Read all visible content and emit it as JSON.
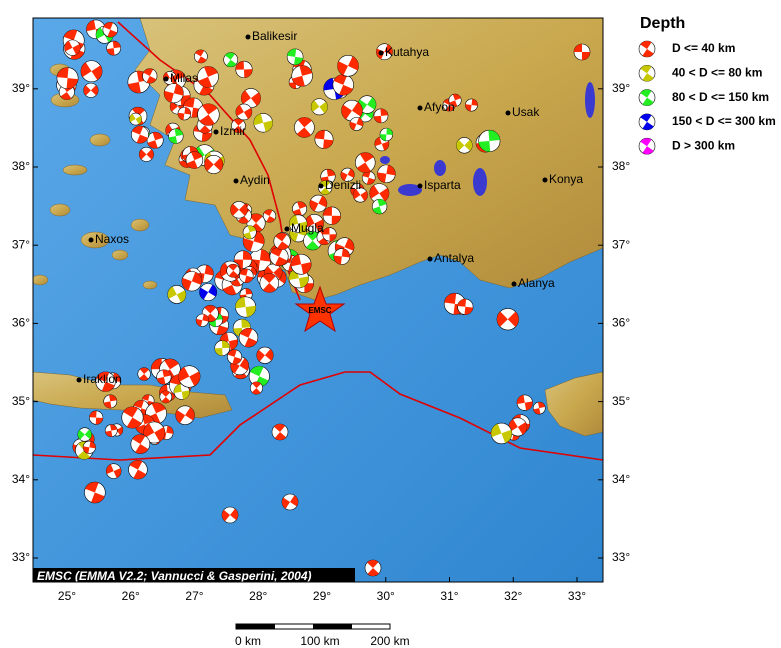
{
  "legend": {
    "title": "Depth",
    "items": [
      {
        "label": "D <= 40 km",
        "color": "#ff2a00"
      },
      {
        "label": "40 < D <= 80 km",
        "color": "#c8c800"
      },
      {
        "label": "80 < D <= 150 km",
        "color": "#22ee22"
      },
      {
        "label": "150 < D <= 300 km",
        "color": "#0000ee"
      },
      {
        "label": "D > 300 km",
        "color": "#ff00ff"
      }
    ]
  },
  "longitude_labels": [
    "25°",
    "26°",
    "27°",
    "28°",
    "29°",
    "30°",
    "31°",
    "32°",
    "33°"
  ],
  "latitude_labels": [
    "33°",
    "34°",
    "35°",
    "36°",
    "37°",
    "38°",
    "39°"
  ],
  "cities": [
    "Balikesir",
    "Kutahya",
    "Milas",
    "Afyon",
    "Usak",
    "Izmir",
    "Aydin",
    "Denizli",
    "Isparta",
    "Konya",
    "Naxos",
    "Mugla",
    "Antalya",
    "Alanya",
    "Iraklion"
  ],
  "epicenter_label": "EMSC",
  "credit": "EMSC (EMMA V2.2; Vannucci & Gasperini, 2004)",
  "scale_labels": [
    "0 km",
    "100 km",
    "200 km"
  ]
}
